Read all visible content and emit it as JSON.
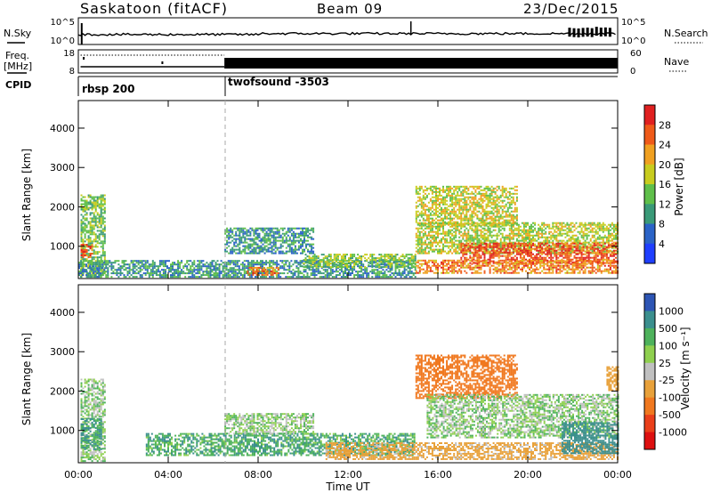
{
  "header": {
    "station": "Saskatoon (fitACF)",
    "beam": "Beam 09",
    "date": "23/Dec/2015"
  },
  "noise_panel": {
    "left_label": "N.Sky",
    "right_label": "N.Search",
    "left_ticks": [
      "10^5",
      "10^0"
    ],
    "right_ticks": [
      "10^5",
      "10^0"
    ]
  },
  "freq_panel": {
    "left_label_top": "Freq.",
    "left_label_bottom": "[MHz]",
    "left_ticks": [
      "18",
      "8"
    ],
    "right_label": "Nave",
    "right_ticks": [
      "60",
      "0"
    ]
  },
  "cpid_panel": {
    "label": "CPID",
    "segments": [
      {
        "name": "rbsp 200",
        "start_hour": 0
      },
      {
        "name": "twofsound -3503",
        "start_hour": 6.5
      }
    ]
  },
  "time_axis": {
    "xlabel": "Time UT",
    "tick_labels": [
      "00:00",
      "04:00",
      "08:00",
      "12:00",
      "16:00",
      "20:00",
      "00:00"
    ],
    "tick_hours": [
      0,
      4,
      8,
      12,
      16,
      20,
      24
    ]
  },
  "range_axis": {
    "ylabel": "Slant Range [km]",
    "tick_labels": [
      "1000",
      "2000",
      "3000",
      "4000"
    ],
    "tick_values": [
      1000,
      2000,
      3000,
      4000
    ],
    "ylim": [
      180,
      4700
    ]
  },
  "power_scale": {
    "label": "Power [dB]",
    "tick_labels": [
      "4",
      "8",
      "12",
      "16",
      "20",
      "24",
      "28"
    ],
    "colors": [
      "#1f3fff",
      "#2a63c7",
      "#3a9a78",
      "#5fbf4a",
      "#c8cc1e",
      "#f0a020",
      "#ef5a19",
      "#e02020"
    ]
  },
  "velocity_scale": {
    "label": "Velocity [m s⁻¹]",
    "tick_labels": [
      "1000",
      "500",
      "100",
      "25",
      "-25",
      "-100",
      "-500",
      "-1000"
    ],
    "colors": [
      "#2d55b4",
      "#3b8f8e",
      "#4eb25c",
      "#8fd04f",
      "#c0c0c0",
      "#e8a13a",
      "#f0781f",
      "#ea3f1a",
      "#dd1010"
    ]
  },
  "chart_data": [
    {
      "type": "heatmap",
      "title": "",
      "quantity": "Power",
      "units": "dB",
      "xlabel": "Time UT",
      "ylabel": "Slant Range [km]",
      "xlim": [
        0,
        24
      ],
      "ylim": [
        180,
        4700
      ],
      "clim": [
        0,
        30
      ],
      "regions": [
        {
          "t0": 0.1,
          "t1": 1.2,
          "r0": 200,
          "r1": 2300,
          "level": 14
        },
        {
          "t0": 0.1,
          "t1": 0.6,
          "r0": 700,
          "r1": 1050,
          "level": 26
        },
        {
          "t0": 0.0,
          "t1": 15.0,
          "r0": 200,
          "r1": 650,
          "level": 10
        },
        {
          "t0": 6.5,
          "t1": 10.5,
          "r0": 800,
          "r1": 1450,
          "level": 10
        },
        {
          "t0": 10.0,
          "t1": 15.0,
          "r0": 450,
          "r1": 800,
          "level": 15
        },
        {
          "t0": 7.5,
          "t1": 9.0,
          "r0": 250,
          "r1": 450,
          "level": 24
        },
        {
          "t0": 15.0,
          "t1": 19.5,
          "r0": 1500,
          "r1": 2500,
          "level": 18
        },
        {
          "t0": 15.0,
          "t1": 24.0,
          "r0": 800,
          "r1": 1600,
          "level": 17
        },
        {
          "t0": 17.0,
          "t1": 24.0,
          "r0": 550,
          "r1": 1050,
          "level": 27
        },
        {
          "t0": 15.0,
          "t1": 24.0,
          "r0": 300,
          "r1": 650,
          "level": 24
        }
      ]
    },
    {
      "type": "heatmap",
      "title": "",
      "quantity": "Velocity",
      "units": "m s^-1",
      "xlabel": "Time UT",
      "ylabel": "Slant Range [km]",
      "xlim": [
        0,
        24
      ],
      "ylim": [
        180,
        4700
      ],
      "clim": [
        -1000,
        1000
      ],
      "regions": [
        {
          "t0": 0.1,
          "t1": 1.2,
          "r0": 200,
          "r1": 2300,
          "value": 0
        },
        {
          "t0": 0.1,
          "t1": 1.0,
          "r0": 500,
          "r1": 1300,
          "value": 120
        },
        {
          "t0": 3.0,
          "t1": 15.0,
          "r0": 350,
          "r1": 900,
          "value": 80
        },
        {
          "t0": 6.5,
          "t1": 10.5,
          "r0": 900,
          "r1": 1400,
          "value": 0
        },
        {
          "t0": 11.0,
          "t1": 24.0,
          "r0": 250,
          "r1": 700,
          "value": -150
        },
        {
          "t0": 15.0,
          "t1": 19.5,
          "r0": 1800,
          "r1": 2900,
          "value": -700
        },
        {
          "t0": 15.5,
          "t1": 24.0,
          "r0": 800,
          "r1": 1900,
          "value": 0
        },
        {
          "t0": 21.5,
          "t1": 24.0,
          "r0": 400,
          "r1": 1200,
          "value": 200
        },
        {
          "t0": 23.5,
          "t1": 24.0,
          "r0": 2000,
          "r1": 2600,
          "value": -400
        }
      ]
    }
  ]
}
